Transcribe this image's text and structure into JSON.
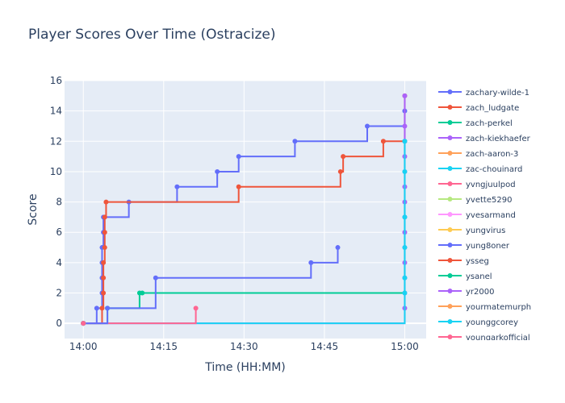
{
  "chart_data": {
    "type": "line",
    "line_shape": "step",
    "title": "Player Scores Over Time (Ostracize)",
    "xlabel": "Time (HH:MM)",
    "ylabel": "Score",
    "x_unit": "HH:MM",
    "xlim": [
      "13:56:30",
      "15:04:00"
    ],
    "ylim": [
      -1,
      16
    ],
    "x_ticks": [
      "14:00",
      "14:15",
      "14:30",
      "14:45",
      "15:00"
    ],
    "y_ticks": [
      0,
      2,
      4,
      6,
      8,
      10,
      12,
      14,
      16
    ],
    "grid": true,
    "legend_position": "right",
    "legend_scrollable": true,
    "series": [
      {
        "name": "zachary-wilde-1",
        "color": "#636efa",
        "x": [
          "14:00",
          "14:02:30",
          "14:03:30",
          "14:03:30",
          "14:03:30",
          "14:03:30",
          "14:03:45",
          "14:03:45",
          "14:08:30",
          "14:17:30",
          "14:25:00",
          "14:29:00",
          "14:39:30",
          "14:53:00",
          "15:00"
        ],
        "y": [
          0,
          1,
          2,
          3,
          4,
          5,
          6,
          7,
          8,
          9,
          10,
          11,
          12,
          13,
          14
        ]
      },
      {
        "name": "zach_ludgate",
        "color": "#ef553b",
        "x": [
          "14:00",
          "14:03:30",
          "14:03:45",
          "14:03:45",
          "14:03:45",
          "14:04",
          "14:04",
          "14:04",
          "14:04:15",
          "14:29:00",
          "14:48:00",
          "14:48:30",
          "14:56:00",
          "15:00"
        ],
        "y": [
          0,
          1,
          2,
          3,
          4,
          5,
          6,
          7,
          8,
          9,
          10,
          11,
          12,
          15
        ]
      },
      {
        "name": "zach-perkel",
        "color": "#00cc96",
        "x": [
          "14:00",
          "14:04:30",
          "14:10:30",
          "14:11:00",
          "15:00"
        ],
        "y": [
          0,
          1,
          2,
          2,
          12
        ]
      },
      {
        "name": "zach-kiekhaefer",
        "color": "#ab63fa",
        "x": [
          "14:00",
          "15:00",
          "15:00",
          "15:00",
          "15:00",
          "15:00",
          "15:00",
          "15:00",
          "15:00",
          "15:00",
          "15:00",
          "15:00",
          "15:00",
          "15:00",
          "15:00"
        ],
        "y": [
          0,
          1,
          2,
          3,
          4,
          5,
          6,
          7,
          8,
          9,
          10,
          11,
          12,
          13,
          15
        ]
      },
      {
        "name": "zach-aaron-3",
        "color": "#ffa15a",
        "x": [
          "14:00"
        ],
        "y": [
          0
        ]
      },
      {
        "name": "zac-chouinard",
        "color": "#19d3f3",
        "x": [
          "14:00",
          "15:00",
          "15:00",
          "15:00",
          "15:00",
          "15:00",
          "15:00"
        ],
        "y": [
          0,
          2,
          3,
          5,
          7,
          10,
          12
        ]
      },
      {
        "name": "yvngjuulpod",
        "color": "#ff6692",
        "x": [
          "14:00",
          "14:21:00"
        ],
        "y": [
          0,
          1
        ]
      },
      {
        "name": "yvette5290",
        "color": "#b6e880",
        "x": [
          "14:00"
        ],
        "y": [
          0
        ]
      },
      {
        "name": "yvesarmand",
        "color": "#ff97ff",
        "x": [
          "14:00"
        ],
        "y": [
          0
        ]
      },
      {
        "name": "yungvirus",
        "color": "#fecb52",
        "x": [
          "14:00"
        ],
        "y": [
          0
        ]
      },
      {
        "name": "yung8oner",
        "color": "#636efa",
        "x": [
          "14:00",
          "14:04:30",
          "14:13:30",
          "14:42:30",
          "14:47:30"
        ],
        "y": [
          0,
          1,
          3,
          4,
          5
        ]
      },
      {
        "name": "ysseg",
        "color": "#ef553b",
        "x": [
          "14:00"
        ],
        "y": [
          0
        ]
      },
      {
        "name": "ysanel",
        "color": "#00cc96",
        "x": [
          "14:00"
        ],
        "y": [
          0
        ]
      },
      {
        "name": "yr2000",
        "color": "#ab63fa",
        "x": [
          "14:00"
        ],
        "y": [
          0
        ]
      },
      {
        "name": "yourmatemurph",
        "color": "#ffa15a",
        "x": [
          "14:00"
        ],
        "y": [
          0
        ]
      },
      {
        "name": "younggcorey",
        "color": "#19d3f3",
        "x": [
          "14:00"
        ],
        "y": [
          0
        ]
      },
      {
        "name": "youngarkofficial",
        "color": "#ff6692",
        "x": [
          "14:00"
        ],
        "y": [
          0
        ]
      }
    ]
  }
}
